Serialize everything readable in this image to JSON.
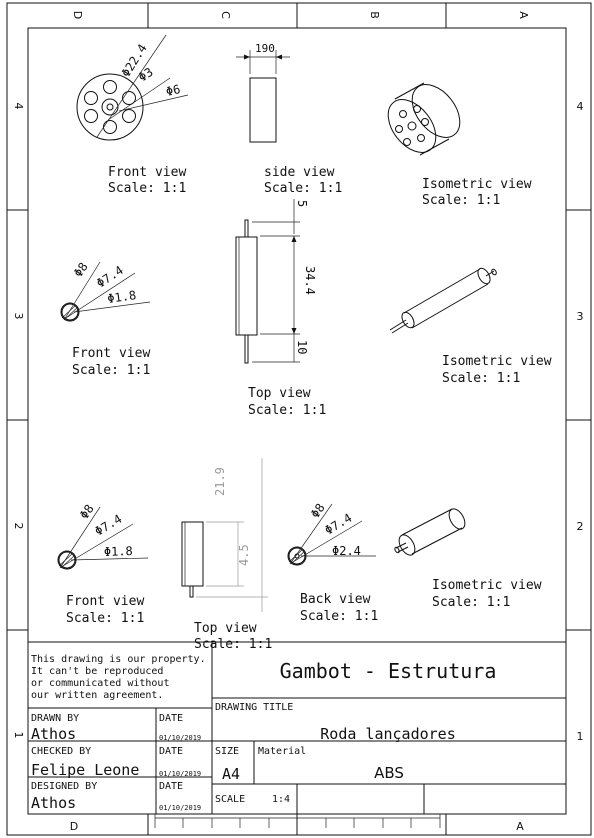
{
  "zones": {
    "columns": [
      "D",
      "C",
      "B",
      "A"
    ],
    "rows": [
      "4",
      "3",
      "2",
      "1"
    ]
  },
  "views": {
    "top_row": {
      "front": {
        "label": "Front view",
        "scale": "Scale:  1:1",
        "dims": [
          "Φ22.4",
          "Φ3",
          "Φ6"
        ]
      },
      "side": {
        "label": "side view",
        "scale": "Scale:  1:1",
        "dims": [
          "190"
        ]
      },
      "iso": {
        "label": "Isometric view",
        "scale": "Scale:  1:1"
      }
    },
    "middle_row": {
      "front": {
        "label": "Front view",
        "scale": "Scale:  1:1",
        "dims": [
          "Φ8",
          "Φ7.4",
          "Φ1.8"
        ]
      },
      "top": {
        "label": "Top view",
        "scale": "Scale:  1:1",
        "dims": [
          "5",
          "34.4",
          "10"
        ]
      },
      "iso": {
        "label": "Isometric view",
        "scale": "Scale:  1:1"
      }
    },
    "bottom_row": {
      "front": {
        "label": "Front view",
        "scale": "Scale:  1:1",
        "dims": [
          "Φ8",
          "Φ7.4",
          "Φ1.8"
        ]
      },
      "top": {
        "label": "Top view",
        "scale": "Scale:  1:1",
        "dims": [
          "21.9",
          "4.5"
        ]
      },
      "back": {
        "label": "Back view",
        "scale": "Scale:  1:1",
        "dims": [
          "Φ8",
          "Φ7.4",
          "Φ2.4"
        ]
      },
      "iso": {
        "label": "Isometric view",
        "scale": "Scale:  1:1"
      }
    }
  },
  "title_block": {
    "property_notice": [
      "This drawing is our property.",
      "It can't be reproduced",
      "or communicated without",
      "our written agreement."
    ],
    "project_name": "Gambot - Estrutura",
    "drawing_title_label": "DRAWING TITLE",
    "drawing_title": "Roda lançadores",
    "drawn_by_label": "DRAWN BY",
    "drawn_by": "Athos",
    "checked_by_label": "CHECKED BY",
    "checked_by": "Felipe Leone",
    "designed_by_label": "DESIGNED BY",
    "designed_by": "Athos",
    "date_label": "DATE",
    "dates": [
      "01/10/2019",
      "01/10/2019",
      "01/10/2019"
    ],
    "size_label": "SIZE",
    "size": "A4",
    "material_label": "Material",
    "material": "ABS",
    "scale_label": "SCALE",
    "scale": "1:4"
  }
}
